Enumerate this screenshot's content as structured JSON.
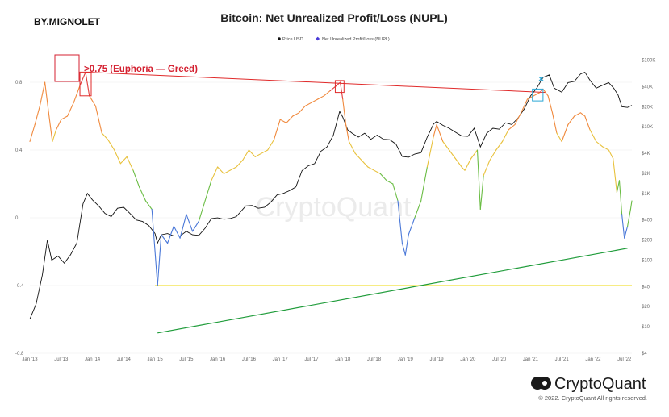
{
  "author": "BY.MIGNOLET",
  "annotation": ">0.75 (Euphoria — Greed)",
  "watermark": "CryptoQuant",
  "footer": {
    "brand": "CryptoQuant",
    "copyright": "© 2022. CryptoQuant All rights reserved."
  },
  "colors": {
    "euphoria": "#e03b3b",
    "belief": "#f08a3e",
    "optimism": "#e8c13c",
    "hope": "#6bbd45",
    "capitulation": "#4a78d8",
    "price": "#111111",
    "support_line": "#1f9c3a",
    "low_line": "#f2e13a",
    "top_line": "#e02a2a",
    "marker": "#2aa7d6"
  },
  "chart_data": {
    "type": "line",
    "title": "Bitcoin: Net Unrealized Profit/Loss (NUPL)",
    "legend": [
      "Price USD",
      "Net Unrealized Profit/Loss (NUPL)"
    ],
    "legend_position": "top-center",
    "x_ticks": [
      "Jan '13",
      "Jul '13",
      "Jan '14",
      "Jul '14",
      "Jan '15",
      "Jul '15",
      "Jan '16",
      "Jul '16",
      "Jan '17",
      "Jul '17",
      "Jan '18",
      "Jul '18",
      "Jan '19",
      "Jul '19",
      "Jan '20",
      "Jul '20",
      "Jan '21",
      "Jul '21",
      "Jan '22",
      "Jul '22"
    ],
    "x_range": [
      2013.0,
      2022.62
    ],
    "left_axis": {
      "ticks": [
        "0.8",
        "0.4",
        "0",
        "-0.4",
        "-0.8"
      ],
      "range": [
        -0.8,
        1.0
      ]
    },
    "right_axis": {
      "log": true,
      "ticks": [
        "$100K",
        "$40K",
        "$20K",
        "$10K",
        "$4K",
        "$2K",
        "$1K",
        "$400",
        "$200",
        "$100",
        "$40",
        "$20",
        "$10",
        "$4"
      ],
      "range": [
        4,
        150000
      ]
    },
    "grid": true,
    "series": [
      {
        "name": "Net Unrealized Profit/Loss (NUPL)",
        "axis": "left",
        "points": [
          [
            2013.0,
            0.45
          ],
          [
            2013.08,
            0.55
          ],
          [
            2013.16,
            0.66
          ],
          [
            2013.24,
            0.8
          ],
          [
            2013.3,
            0.62
          ],
          [
            2013.36,
            0.45
          ],
          [
            2013.42,
            0.52
          ],
          [
            2013.5,
            0.58
          ],
          [
            2013.6,
            0.6
          ],
          [
            2013.7,
            0.68
          ],
          [
            2013.8,
            0.78
          ],
          [
            2013.89,
            0.86
          ],
          [
            2013.95,
            0.72
          ],
          [
            2014.05,
            0.66
          ],
          [
            2014.15,
            0.5
          ],
          [
            2014.25,
            0.46
          ],
          [
            2014.35,
            0.4
          ],
          [
            2014.45,
            0.32
          ],
          [
            2014.55,
            0.36
          ],
          [
            2014.65,
            0.28
          ],
          [
            2014.75,
            0.18
          ],
          [
            2014.85,
            0.1
          ],
          [
            2014.95,
            0.05
          ],
          [
            2015.0,
            -0.2
          ],
          [
            2015.04,
            -0.4
          ],
          [
            2015.1,
            -0.1
          ],
          [
            2015.2,
            -0.15
          ],
          [
            2015.3,
            -0.05
          ],
          [
            2015.4,
            -0.12
          ],
          [
            2015.5,
            0.02
          ],
          [
            2015.6,
            -0.08
          ],
          [
            2015.7,
            -0.02
          ],
          [
            2015.8,
            0.1
          ],
          [
            2015.9,
            0.22
          ],
          [
            2016.0,
            0.3
          ],
          [
            2016.1,
            0.26
          ],
          [
            2016.2,
            0.28
          ],
          [
            2016.3,
            0.3
          ],
          [
            2016.4,
            0.34
          ],
          [
            2016.5,
            0.4
          ],
          [
            2016.6,
            0.36
          ],
          [
            2016.7,
            0.38
          ],
          [
            2016.8,
            0.4
          ],
          [
            2016.9,
            0.46
          ],
          [
            2017.0,
            0.58
          ],
          [
            2017.1,
            0.56
          ],
          [
            2017.2,
            0.6
          ],
          [
            2017.3,
            0.62
          ],
          [
            2017.4,
            0.66
          ],
          [
            2017.5,
            0.68
          ],
          [
            2017.6,
            0.7
          ],
          [
            2017.7,
            0.72
          ],
          [
            2017.8,
            0.75
          ],
          [
            2017.9,
            0.78
          ],
          [
            2017.96,
            0.8
          ],
          [
            2018.0,
            0.7
          ],
          [
            2018.05,
            0.55
          ],
          [
            2018.1,
            0.45
          ],
          [
            2018.2,
            0.38
          ],
          [
            2018.3,
            0.34
          ],
          [
            2018.4,
            0.3
          ],
          [
            2018.5,
            0.28
          ],
          [
            2018.6,
            0.26
          ],
          [
            2018.7,
            0.22
          ],
          [
            2018.8,
            0.2
          ],
          [
            2018.88,
            0.1
          ],
          [
            2018.95,
            -0.15
          ],
          [
            2019.0,
            -0.22
          ],
          [
            2019.05,
            -0.1
          ],
          [
            2019.15,
            0.0
          ],
          [
            2019.25,
            0.1
          ],
          [
            2019.35,
            0.3
          ],
          [
            2019.45,
            0.48
          ],
          [
            2019.5,
            0.55
          ],
          [
            2019.6,
            0.45
          ],
          [
            2019.7,
            0.4
          ],
          [
            2019.8,
            0.35
          ],
          [
            2019.9,
            0.3
          ],
          [
            2019.95,
            0.28
          ],
          [
            2020.05,
            0.35
          ],
          [
            2020.15,
            0.4
          ],
          [
            2020.2,
            0.05
          ],
          [
            2020.25,
            0.25
          ],
          [
            2020.35,
            0.34
          ],
          [
            2020.45,
            0.4
          ],
          [
            2020.55,
            0.45
          ],
          [
            2020.65,
            0.52
          ],
          [
            2020.75,
            0.55
          ],
          [
            2020.85,
            0.62
          ],
          [
            2020.95,
            0.7
          ],
          [
            2021.05,
            0.72
          ],
          [
            2021.15,
            0.74
          ],
          [
            2021.2,
            0.76
          ],
          [
            2021.28,
            0.72
          ],
          [
            2021.35,
            0.62
          ],
          [
            2021.42,
            0.5
          ],
          [
            2021.5,
            0.45
          ],
          [
            2021.6,
            0.55
          ],
          [
            2021.7,
            0.6
          ],
          [
            2021.8,
            0.62
          ],
          [
            2021.87,
            0.6
          ],
          [
            2021.95,
            0.52
          ],
          [
            2022.05,
            0.45
          ],
          [
            2022.15,
            0.42
          ],
          [
            2022.25,
            0.4
          ],
          [
            2022.32,
            0.35
          ],
          [
            2022.38,
            0.15
          ],
          [
            2022.42,
            0.22
          ],
          [
            2022.46,
            0.02
          ],
          [
            2022.5,
            -0.12
          ],
          [
            2022.55,
            -0.05
          ],
          [
            2022.6,
            0.05
          ],
          [
            2022.62,
            0.1
          ]
        ]
      },
      {
        "name": "Price USD",
        "axis": "right",
        "points": [
          [
            2013.0,
            13
          ],
          [
            2013.1,
            22
          ],
          [
            2013.2,
            60
          ],
          [
            2013.28,
            200
          ],
          [
            2013.35,
            100
          ],
          [
            2013.45,
            115
          ],
          [
            2013.55,
            90
          ],
          [
            2013.65,
            120
          ],
          [
            2013.75,
            180
          ],
          [
            2013.85,
            700
          ],
          [
            2013.92,
            1000
          ],
          [
            2014.0,
            800
          ],
          [
            2014.1,
            650
          ],
          [
            2014.2,
            500
          ],
          [
            2014.3,
            450
          ],
          [
            2014.4,
            600
          ],
          [
            2014.5,
            620
          ],
          [
            2014.6,
            500
          ],
          [
            2014.7,
            400
          ],
          [
            2014.8,
            380
          ],
          [
            2014.9,
            330
          ],
          [
            2015.0,
            250
          ],
          [
            2015.04,
            180
          ],
          [
            2015.1,
            240
          ],
          [
            2015.2,
            250
          ],
          [
            2015.3,
            230
          ],
          [
            2015.4,
            230
          ],
          [
            2015.5,
            270
          ],
          [
            2015.6,
            240
          ],
          [
            2015.7,
            235
          ],
          [
            2015.8,
            300
          ],
          [
            2015.9,
            420
          ],
          [
            2016.0,
            430
          ],
          [
            2016.1,
            410
          ],
          [
            2016.2,
            420
          ],
          [
            2016.3,
            450
          ],
          [
            2016.45,
            650
          ],
          [
            2016.55,
            660
          ],
          [
            2016.65,
            600
          ],
          [
            2016.75,
            620
          ],
          [
            2016.85,
            740
          ],
          [
            2016.95,
            950
          ],
          [
            2017.05,
            1000
          ],
          [
            2017.15,
            1100
          ],
          [
            2017.25,
            1250
          ],
          [
            2017.35,
            2200
          ],
          [
            2017.45,
            2600
          ],
          [
            2017.55,
            2800
          ],
          [
            2017.65,
            4300
          ],
          [
            2017.75,
            5000
          ],
          [
            2017.85,
            7500
          ],
          [
            2017.95,
            17000
          ],
          [
            2018.0,
            14000
          ],
          [
            2018.08,
            9000
          ],
          [
            2018.15,
            8000
          ],
          [
            2018.25,
            7000
          ],
          [
            2018.35,
            8000
          ],
          [
            2018.45,
            6500
          ],
          [
            2018.55,
            7500
          ],
          [
            2018.65,
            6500
          ],
          [
            2018.75,
            6400
          ],
          [
            2018.85,
            5500
          ],
          [
            2018.95,
            3600
          ],
          [
            2019.05,
            3500
          ],
          [
            2019.15,
            3900
          ],
          [
            2019.25,
            4100
          ],
          [
            2019.35,
            7000
          ],
          [
            2019.45,
            11000
          ],
          [
            2019.5,
            12000
          ],
          [
            2019.6,
            10500
          ],
          [
            2019.7,
            9500
          ],
          [
            2019.8,
            8300
          ],
          [
            2019.9,
            7300
          ],
          [
            2020.0,
            7200
          ],
          [
            2020.1,
            9500
          ],
          [
            2020.2,
            5000
          ],
          [
            2020.3,
            8000
          ],
          [
            2020.4,
            9500
          ],
          [
            2020.5,
            9200
          ],
          [
            2020.6,
            11500
          ],
          [
            2020.7,
            10800
          ],
          [
            2020.8,
            13500
          ],
          [
            2020.9,
            18500
          ],
          [
            2021.0,
            29000
          ],
          [
            2021.1,
            38000
          ],
          [
            2021.2,
            55000
          ],
          [
            2021.3,
            60000
          ],
          [
            2021.38,
            38000
          ],
          [
            2021.5,
            33000
          ],
          [
            2021.6,
            46000
          ],
          [
            2021.7,
            48000
          ],
          [
            2021.8,
            62000
          ],
          [
            2021.87,
            66000
          ],
          [
            2021.95,
            50000
          ],
          [
            2022.05,
            38000
          ],
          [
            2022.15,
            42000
          ],
          [
            2022.25,
            46000
          ],
          [
            2022.33,
            38000
          ],
          [
            2022.4,
            30000
          ],
          [
            2022.46,
            20000
          ],
          [
            2022.55,
            19500
          ],
          [
            2022.62,
            21000
          ]
        ]
      }
    ],
    "annotations": {
      "top_line": {
        "from": [
          2013.88,
          0.86
        ],
        "to": [
          2021.25,
          0.74
        ]
      },
      "low_line": {
        "y": -0.4,
        "from": 2015.0,
        "to": 2022.62
      },
      "support_line": {
        "from": [
          2015.04,
          -0.68
        ],
        "to": [
          2022.55,
          -0.18
        ]
      },
      "boxes": [
        {
          "x": [
            2013.8,
            2013.98
          ],
          "y": [
            0.72,
            0.86
          ]
        },
        {
          "x": [
            2017.88,
            2018.02
          ],
          "y": [
            0.74,
            0.81
          ]
        },
        {
          "x": [
            2021.03,
            2021.2
          ],
          "y": [
            0.69,
            0.76
          ]
        }
      ],
      "marker": [
        2021.17,
        0.82
      ]
    }
  }
}
